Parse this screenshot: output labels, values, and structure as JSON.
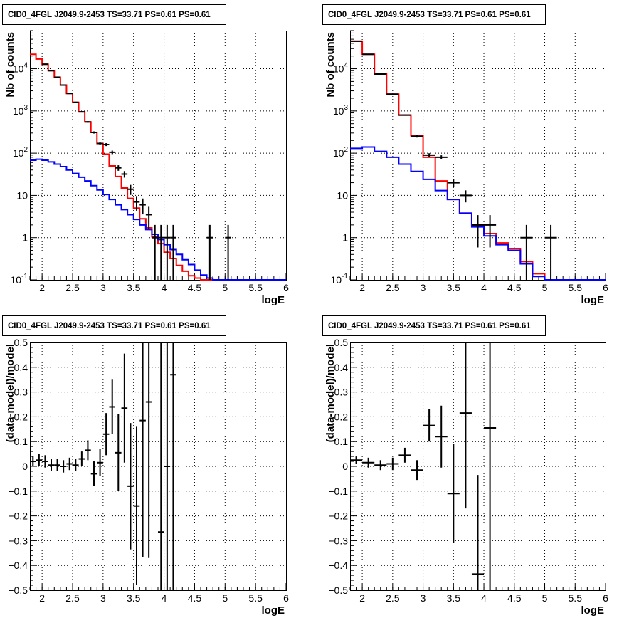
{
  "chart_data": [
    {
      "type": "line",
      "title": "CID0_4FGL J2049.9-2453 TS=33.71 PS=0.61 PS=0.61",
      "xlabel": "logE",
      "ylabel": "Nb of counts",
      "xlim": [
        1.8,
        6.0
      ],
      "ylim": [
        0.1,
        80000
      ],
      "yscale": "log",
      "grid": true,
      "x_ticks": [
        "2",
        "2.5",
        "3",
        "3.5",
        "4",
        "4.5",
        "5",
        "5.5",
        "6"
      ],
      "y_ticks": [
        "10^-1",
        "1",
        "10",
        "10^2",
        "10^3",
        "10^4"
      ],
      "bin_edges": [
        1.8,
        1.9,
        2.0,
        2.1,
        2.2,
        2.3,
        2.4,
        2.5,
        2.6,
        2.7,
        2.8,
        2.9,
        3.0,
        3.1,
        3.2,
        3.3,
        3.4,
        3.5,
        3.6,
        3.7,
        3.8,
        3.9,
        4.0,
        4.1,
        4.2,
        4.3,
        4.4,
        4.5,
        4.6,
        4.7,
        4.8,
        4.9,
        5.0,
        5.1,
        5.2,
        5.3,
        5.4,
        5.5,
        5.6,
        5.7,
        5.8,
        5.9,
        6.0
      ],
      "series": [
        {
          "name": "",
          "color": "#ff0000",
          "style": "step",
          "values": [
            22000,
            17000,
            12800,
            9000,
            6300,
            4100,
            2600,
            1600,
            950,
            550,
            310,
            170,
            95,
            50,
            28,
            15,
            8.5,
            5,
            2.8,
            1.7,
            1.05,
            0.72,
            0.45,
            0.32,
            0.22,
            0.16,
            0.125,
            0.11,
            0.1,
            0.1,
            0.1,
            0.1,
            0.1,
            0.1,
            0.1,
            0.1,
            0.1,
            0.1,
            0.1,
            0.1,
            0.1,
            0.1
          ]
        },
        {
          "name": "",
          "color": "#0000ff",
          "style": "step",
          "values": [
            68,
            72,
            68,
            62,
            55,
            48,
            40,
            33,
            27,
            22,
            17,
            13.5,
            10.5,
            8,
            6,
            4.6,
            3.5,
            2.7,
            2,
            1.55,
            1.2,
            0.9,
            0.68,
            0.52,
            0.4,
            0.3,
            0.23,
            0.17,
            0.13,
            0.11,
            0.1,
            0.1,
            0.1,
            0.1,
            0.1,
            0.1,
            0.1,
            0.1,
            0.1,
            0.1,
            0.1,
            0.1
          ]
        },
        {
          "name": "",
          "color": "#000000",
          "style": "points",
          "x": [
            2.05,
            2.15,
            2.25,
            2.35,
            2.45,
            2.55,
            2.65,
            2.75,
            2.85,
            2.95,
            3.05,
            3.15,
            3.25,
            3.35,
            3.45,
            3.55,
            3.65,
            3.75,
            3.85,
            3.95,
            4.05,
            4.15,
            4.75,
            5.05
          ],
          "y": [
            12800,
            9000,
            6300,
            4100,
            2600,
            1600,
            950,
            550,
            310,
            170,
            160,
            105,
            45,
            32,
            14,
            7,
            6,
            3.5,
            1,
            1,
            1,
            1,
            1,
            1
          ],
          "xerr": 0.05
        }
      ]
    },
    {
      "type": "line",
      "title": "CID0_4FGL J2049.9-2453 TS=33.71 PS=0.61 PS=0.61",
      "xlabel": "logE",
      "ylabel": "Nb of counts",
      "xlim": [
        1.8,
        6.0
      ],
      "ylim": [
        0.1,
        80000
      ],
      "yscale": "log",
      "grid": true,
      "x_ticks": [
        "2",
        "2.5",
        "3",
        "3.5",
        "4",
        "4.5",
        "5",
        "5.5",
        "6"
      ],
      "y_ticks": [
        "10^-1",
        "1",
        "10",
        "10^2",
        "10^3",
        "10^4"
      ],
      "bin_edges": [
        1.8,
        2.0,
        2.2,
        2.4,
        2.6,
        2.8,
        3.0,
        3.2,
        3.4,
        3.6,
        3.8,
        4.0,
        4.2,
        4.4,
        4.6,
        4.8,
        5.0,
        5.2,
        5.4,
        5.6,
        5.8,
        6.0
      ],
      "series": [
        {
          "name": "",
          "color": "#ff0000",
          "style": "step",
          "values": [
            45000,
            22000,
            7500,
            2500,
            800,
            260,
            80,
            22,
            8,
            3.8,
            1.9,
            1.25,
            0.75,
            0.55,
            0.27,
            0.14,
            0.1,
            0.1,
            0.1,
            0.1,
            0.1
          ]
        },
        {
          "name": "",
          "color": "#0000ff",
          "style": "step",
          "values": [
            130,
            140,
            110,
            80,
            55,
            37,
            24,
            13,
            8,
            3.8,
            1.8,
            1.1,
            0.68,
            0.5,
            0.24,
            0.12,
            0.1,
            0.1,
            0.1,
            0.1,
            0.1
          ]
        },
        {
          "name": "",
          "color": "#000000",
          "style": "points",
          "x": [
            1.9,
            2.1,
            2.3,
            2.5,
            2.7,
            2.9,
            3.1,
            3.3,
            3.5,
            3.7,
            3.9,
            4.1,
            4.7,
            5.1
          ],
          "y": [
            45000,
            22000,
            7500,
            2500,
            800,
            250,
            90,
            80,
            20,
            10,
            2,
            2,
            1,
            1
          ],
          "xerr": 0.1
        }
      ]
    },
    {
      "type": "scatter",
      "title": "CID0_4FGL J2049.9-2453 TS=33.71 PS=0.61 PS=0.61",
      "xlabel": "logE",
      "ylabel": "(data-model)/model",
      "xlim": [
        1.8,
        6.0
      ],
      "ylim": [
        -0.5,
        0.5
      ],
      "grid": true,
      "x_ticks": [
        "2",
        "2.5",
        "3",
        "3.5",
        "4",
        "4.5",
        "5",
        "5.5",
        "6"
      ],
      "y_ticks": [
        "−0.5",
        "−0.4",
        "−0.3",
        "−0.2",
        "−0.1",
        "0",
        "0.1",
        "0.2",
        "0.3",
        "0.4",
        "0.5"
      ],
      "series": [
        {
          "name": "",
          "color": "#000000",
          "x": [
            1.85,
            1.95,
            2.05,
            2.15,
            2.25,
            2.35,
            2.45,
            2.55,
            2.65,
            2.75,
            2.85,
            2.95,
            3.05,
            3.15,
            3.25,
            3.35,
            3.45,
            3.55,
            3.65,
            3.75,
            3.95,
            4.05,
            4.15
          ],
          "y": [
            0.02,
            0.025,
            0.02,
            0.005,
            0.005,
            0,
            0.01,
            0.005,
            0.03,
            0.065,
            -0.03,
            0.015,
            0.13,
            0.24,
            0.055,
            0.235,
            -0.08,
            -0.16,
            0.185,
            0.26,
            -0.265,
            0,
            0.37
          ],
          "yerr": [
            0.02,
            0.025,
            0.025,
            0.025,
            0.025,
            0.025,
            0.025,
            0.025,
            0.03,
            0.04,
            0.05,
            0.055,
            0.085,
            0.11,
            0.155,
            0.22,
            0.255,
            0.32,
            0.55,
            0.63,
            0.8,
            0.9,
            1.2
          ],
          "xerr": 0.05
        }
      ]
    },
    {
      "type": "scatter",
      "title": "CID0_4FGL J2049.9-2453 TS=33.71 PS=0.61 PS=0.61",
      "xlabel": "logE",
      "ylabel": "(data-model)/model",
      "xlim": [
        1.8,
        6.0
      ],
      "ylim": [
        -0.5,
        0.5
      ],
      "grid": true,
      "x_ticks": [
        "2",
        "2.5",
        "3",
        "3.5",
        "4",
        "4.5",
        "5",
        "5.5",
        "6"
      ],
      "y_ticks": [
        "−0.5",
        "−0.4",
        "−0.3",
        "−0.2",
        "−0.1",
        "0",
        "0.1",
        "0.2",
        "0.3",
        "0.4",
        "0.5"
      ],
      "series": [
        {
          "name": "",
          "color": "#000000",
          "x": [
            1.9,
            2.1,
            2.3,
            2.5,
            2.7,
            2.9,
            3.1,
            3.3,
            3.5,
            3.7,
            3.9,
            4.1
          ],
          "y": [
            0.025,
            0.015,
            0.005,
            0.01,
            0.045,
            -0.015,
            0.165,
            0.12,
            -0.11,
            0.215,
            -0.435,
            0.155
          ],
          "yerr": [
            0.015,
            0.02,
            0.02,
            0.025,
            0.03,
            0.04,
            0.065,
            0.125,
            0.2,
            0.385,
            0.4,
            0.9
          ],
          "xerr": 0.1
        }
      ]
    }
  ]
}
